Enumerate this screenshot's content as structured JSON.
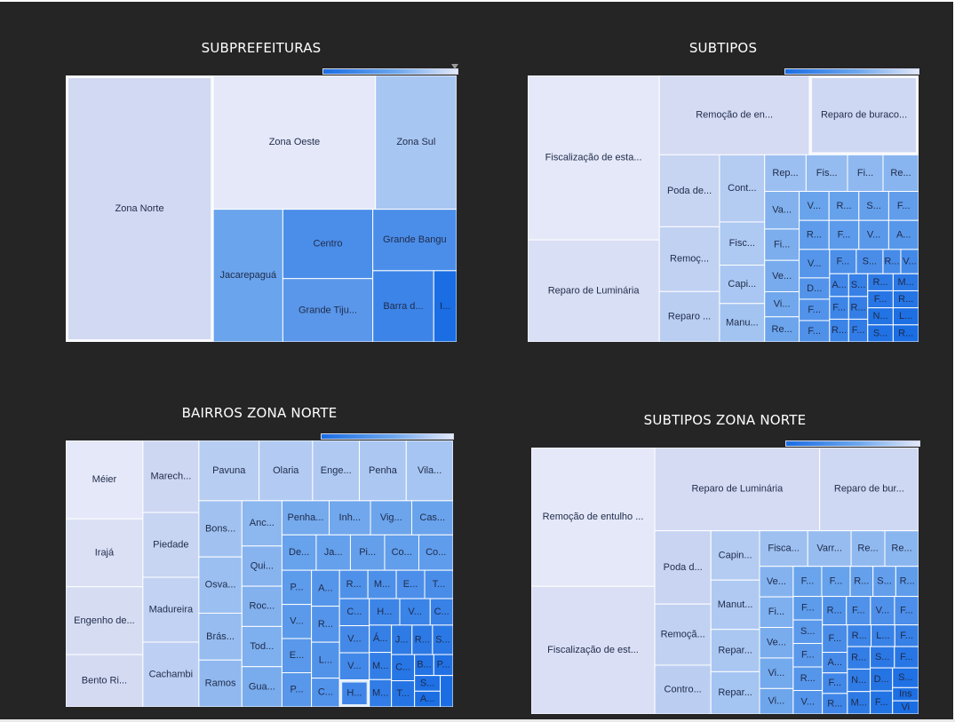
{
  "colors": {
    "background": "#252525",
    "scale": [
      "#e4e8f8",
      "#d2d9f2",
      "#a8c6f2",
      "#6aa4ec",
      "#4b8ee9",
      "#1a6de3"
    ],
    "text": "#1f2b4a"
  },
  "chart_data": [
    {
      "id": "subprefeituras",
      "type": "treemap",
      "title": "SUBPREFEITURAS",
      "items": [
        {
          "label": "Zona Norte",
          "value": 290,
          "color": "#d2d9f2",
          "highlight": true
        },
        {
          "label": "Zona Oeste",
          "value": 160,
          "color": "#e4e8f8"
        },
        {
          "label": "Zona Sul",
          "value": 80,
          "color": "#a8c6f2"
        },
        {
          "label": "Jacarepaguá",
          "value": 68,
          "color": "#6aa4ec"
        },
        {
          "label": "Grande Tiju...",
          "value": 42,
          "color": "#5a97ea"
        },
        {
          "label": "Grande Bangu",
          "value": 38,
          "color": "#4b8ee9"
        },
        {
          "label": "Centro",
          "value": 46,
          "color": "#4b8ee9"
        },
        {
          "label": "Barra da Tijuca",
          "value": 32,
          "color": "#3d84e8"
        },
        {
          "label": "Ilhas",
          "value": 12,
          "color": "#1a6de3"
        }
      ]
    },
    {
      "id": "subtipos",
      "type": "treemap",
      "title": "SUBTIPOS",
      "items": [
        {
          "label": "Fiscalização de estacionamento irregular...",
          "value": 100
        },
        {
          "label": "Remoção de en...",
          "value": 55
        },
        {
          "label": "Reparo de Luminária",
          "value": 62
        },
        {
          "label": "Reparo de buraco, defor...",
          "value": 40,
          "highlight": true
        },
        {
          "label": "Poda de árvore em lo...",
          "value": 20
        },
        {
          "label": "Remoç...",
          "value": 18
        },
        {
          "label": "Reparo de lâ...",
          "value": 14
        },
        {
          "label": "Controle de r...",
          "value": 14
        },
        {
          "label": "Fiscaliz...",
          "value": 9
        },
        {
          "label": "Capin...",
          "value": 8
        },
        {
          "label": "Manu...",
          "value": 8
        },
        {
          "label": "Reparo de...",
          "value": 7
        },
        {
          "label": "Fiscalizaçã...",
          "value": 7
        },
        {
          "label": "Fiscalizaç...",
          "value": 6
        },
        {
          "label": "Repo...",
          "value": 6
        },
        {
          "label": "Varri...",
          "value": 6
        },
        {
          "label": "Fiscalizaç...",
          "value": 5
        },
        {
          "label": "Verificaçã...",
          "value": 5
        },
        {
          "label": "Vist...",
          "value": 4
        },
        {
          "label": "Re...",
          "value": 4
        },
        {
          "label": "Ve...",
          "value": 4
        },
        {
          "label": "Resga...",
          "value": 4
        },
        {
          "label": "Solicit...",
          "value": 4
        },
        {
          "label": "Fisc...",
          "value": 4
        },
        {
          "label": "Re...",
          "value": 4
        },
        {
          "label": "Fis...",
          "value": 4
        },
        {
          "label": "Vi...",
          "value": 4
        },
        {
          "label": "At...",
          "value": 4
        },
        {
          "label": "Visto...",
          "value": 4
        },
        {
          "label": "D...",
          "value": 3
        },
        {
          "label": "Fiscaliz...",
          "value": 3
        },
        {
          "label": "Fisca...",
          "value": 3
        },
        {
          "label": "Fis...",
          "value": 3
        },
        {
          "label": "So...",
          "value": 3
        },
        {
          "label": "R...",
          "value": 2
        },
        {
          "label": "Vi...",
          "value": 2
        },
        {
          "label": "A...",
          "value": 2
        },
        {
          "label": "Fis...",
          "value": 2
        },
        {
          "label": "Rep...",
          "value": 2
        },
        {
          "label": "Sol...",
          "value": 2
        },
        {
          "label": "R...",
          "value": 2
        },
        {
          "label": "F...",
          "value": 2
        },
        {
          "label": "Re...",
          "value": 2
        },
        {
          "label": "Man...",
          "value": 2
        },
        {
          "label": "Fis...",
          "value": 2
        },
        {
          "label": "Rei...",
          "value": 2
        },
        {
          "label": "No...",
          "value": 2
        },
        {
          "label": "S...",
          "value": 2
        },
        {
          "label": "Li...",
          "value": 2
        },
        {
          "label": "Re...",
          "value": 2
        }
      ]
    },
    {
      "id": "bairros-zona-norte",
      "type": "treemap",
      "title": "BAIRROS ZONA NORTE",
      "items": [
        {
          "label": "Méier",
          "value": 30
        },
        {
          "label": "Irajá",
          "value": 26
        },
        {
          "label": "Engenho de De...",
          "value": 26
        },
        {
          "label": "Bento Ri...",
          "value": 20
        },
        {
          "label": "Marechal Herm...",
          "value": 20
        },
        {
          "label": "Piedade",
          "value": 18
        },
        {
          "label": "Madureira",
          "value": 18
        },
        {
          "label": "Cachambi",
          "value": 18
        },
        {
          "label": "Engenho...",
          "value": 14
        },
        {
          "label": "Pavuna",
          "value": 18
        },
        {
          "label": "Olaria",
          "value": 16
        },
        {
          "label": "Penha",
          "value": 14
        },
        {
          "label": "Bonsu...",
          "value": 12
        },
        {
          "label": "Vila da Penha",
          "value": 14
        },
        {
          "label": "Osvaldo Cruz",
          "value": 12
        },
        {
          "label": "Brás de...",
          "value": 10
        },
        {
          "label": "Ramos",
          "value": 10
        },
        {
          "label": "Anchieta",
          "value": 9
        },
        {
          "label": "Quinti...",
          "value": 8
        },
        {
          "label": "Inhaú...",
          "value": 7
        },
        {
          "label": "Roch...",
          "value": 8
        },
        {
          "label": "Todos os S...",
          "value": 8
        },
        {
          "label": "Guadalupe",
          "value": 8
        },
        {
          "label": "Vigário Geral",
          "value": 7
        },
        {
          "label": "Penha Circ...",
          "value": 8
        },
        {
          "label": "Cascadura",
          "value": 7
        },
        {
          "label": "Del C...",
          "value": 6
        },
        {
          "label": "Jardi...",
          "value": 6
        },
        {
          "label": "Pilares",
          "value": 6
        },
        {
          "label": "Coelho Neto",
          "value": 6
        },
        {
          "label": "Parada...",
          "value": 5
        },
        {
          "label": "Vicen...",
          "value": 5
        },
        {
          "label": "Colé...",
          "value": 4
        },
        {
          "label": "Cordovil",
          "value": 6
        },
        {
          "label": "Enca...",
          "value": 5
        },
        {
          "label": "Parq...",
          "value": 5
        },
        {
          "label": "Riachuelo",
          "value": 4
        },
        {
          "label": "Ma...",
          "value": 4
        },
        {
          "label": "En...",
          "value": 4
        },
        {
          "label": "Tu...",
          "value": 4
        },
        {
          "label": "Campin...",
          "value": 4
        },
        {
          "label": "Aboliç...",
          "value": 5
        },
        {
          "label": "Ricardo de...",
          "value": 5
        },
        {
          "label": "Vaz...",
          "value": 4
        },
        {
          "label": "Vila...",
          "value": 4
        },
        {
          "label": "C...",
          "value": 3
        },
        {
          "label": "Á...",
          "value": 3
        },
        {
          "label": "Maré",
          "value": 3
        },
        {
          "label": "Ma...",
          "value": 3
        },
        {
          "label": "Lins d...",
          "value": 5
        },
        {
          "label": "Ho...",
          "value": 4,
          "highlight": true
        },
        {
          "label": "Higienó...",
          "value": 4
        },
        {
          "label": "Vista Al...",
          "value": 4
        },
        {
          "label": "J...",
          "value": 3
        },
        {
          "label": "Rocha",
          "value": 3
        },
        {
          "label": "Sa...",
          "value": 3
        },
        {
          "label": "C...",
          "value": 3
        },
        {
          "label": "Tom...",
          "value": 3
        },
        {
          "label": "B...",
          "value": 2
        },
        {
          "label": "P...",
          "value": 2
        },
        {
          "label": "S...",
          "value": 2
        },
        {
          "label": "A...",
          "value": 2
        },
        {
          "label": "Ja...",
          "value": 2
        }
      ]
    },
    {
      "id": "subtipos-zona-norte",
      "type": "treemap",
      "title": "SUBTIPOS ZONA NORTE",
      "items": [
        {
          "label": "Remoção de entulho e bens inservíveis",
          "value": 100
        },
        {
          "label": "Fiscalização de estacionamento irregul...",
          "value": 92
        },
        {
          "label": "Reparo de Luminária",
          "value": 80
        },
        {
          "label": "Reparo de bur...",
          "value": 48
        },
        {
          "label": "Poda de árvore em lo...",
          "value": 24
        },
        {
          "label": "Capina em l...",
          "value": 14
        },
        {
          "label": "Reparo de...",
          "value": 12
        },
        {
          "label": "Remoção d...",
          "value": 20
        },
        {
          "label": "Controle...",
          "value": 16
        },
        {
          "label": "Manutenção/De...",
          "value": 14
        },
        {
          "label": "Repar...",
          "value": 12
        },
        {
          "label": "Fiscaliz...",
          "value": 10
        },
        {
          "label": "Varriç...",
          "value": 9
        },
        {
          "label": "Reposi...",
          "value": 7
        },
        {
          "label": "Remoção...",
          "value": 7
        },
        {
          "label": "Ve...",
          "value": 6
        },
        {
          "label": "Vi...",
          "value": 5
        },
        {
          "label": "Resg...",
          "value": 4
        },
        {
          "label": "Soli...",
          "value": 4
        },
        {
          "label": "Re...",
          "value": 4
        },
        {
          "label": "Fiscaliz...",
          "value": 6
        },
        {
          "label": "Veri...",
          "value": 6
        },
        {
          "label": "Vist...",
          "value": 6
        },
        {
          "label": "Fiscal...",
          "value": 4
        },
        {
          "label": "Soli...",
          "value": 4
        },
        {
          "label": "Fi...",
          "value": 4
        },
        {
          "label": "A...",
          "value": 3
        },
        {
          "label": "Fis...",
          "value": 3
        },
        {
          "label": "Reni...",
          "value": 3
        },
        {
          "label": "R...",
          "value": 3
        },
        {
          "label": "Li...",
          "value": 3
        },
        {
          "label": "Fiscaliza...",
          "value": 5
        },
        {
          "label": "Re...",
          "value": 4
        },
        {
          "label": "Vis...",
          "value": 4
        },
        {
          "label": "Re...",
          "value": 4
        },
        {
          "label": "Fiscaliza...",
          "value": 5
        },
        {
          "label": "Fisc...",
          "value": 3
        },
        {
          "label": "R...",
          "value": 3
        },
        {
          "label": "Not...",
          "value": 3
        },
        {
          "label": "M...",
          "value": 3
        },
        {
          "label": "So...",
          "value": 3
        },
        {
          "label": "Fi...",
          "value": 3
        },
        {
          "label": "Fis...",
          "value": 4
        },
        {
          "label": "Vis...",
          "value": 4
        },
        {
          "label": "D...",
          "value": 3
        },
        {
          "label": "Fi...",
          "value": 3
        },
        {
          "label": "Fisc...",
          "value": 4
        },
        {
          "label": "Fisc...",
          "value": 4
        },
        {
          "label": "So...",
          "value": 3
        },
        {
          "label": "Ins",
          "value": 2
        },
        {
          "label": "Vi",
          "value": 2
        }
      ]
    }
  ]
}
